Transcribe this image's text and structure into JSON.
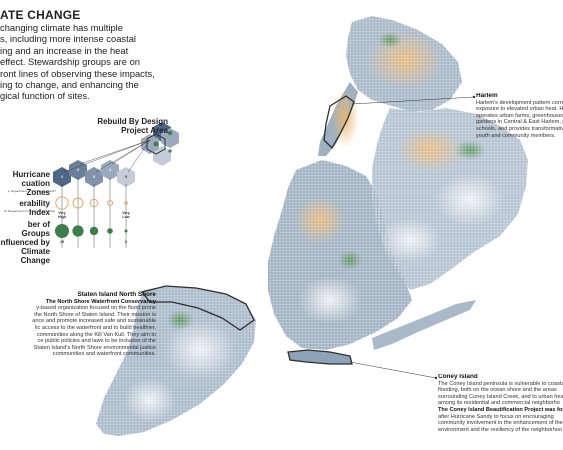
{
  "title": "ATE CHANGE",
  "intro": [
    "changing climate has multiple",
    "s, including more intense coastal",
    "ing and an increase in the heat",
    "effect. Stewardship groups are on",
    "ront lines of observing these impacts,",
    "ing to change, and enhancing the",
    "gical function of sites."
  ],
  "legend": {
    "rebuild_title_1": "Rebuild By Design",
    "rebuild_title_2": "Project Area",
    "hurricane_title_1": "Hurricane",
    "hurricane_title_2": "cuation Zones",
    "hurricane_source": "s, Department of City Planning 2017",
    "hurricane_zones": [
      "1",
      "2",
      "3",
      "4",
      "5"
    ],
    "vulnerability_title": "erability Index",
    "vulnerability_source": "th, Department of University University",
    "very_high_1": "Very",
    "very_high_2": "High",
    "very_low_1": "Very",
    "very_low_2": "Low",
    "groups_title_1": "ber of Groups",
    "groups_title_2": "nfluenced by",
    "groups_title_3": "Climate Change",
    "groups_max": "19",
    "groups_min": "0"
  },
  "annotations": {
    "harlem": {
      "heading": "Harlem",
      "lines": [
        "Harlem's development pattern corres",
        "exposure to elevated urban heat. Ha",
        "operates urban farms, greenhouses, a",
        "gardens in Central & East Harlem, pa",
        "schools, and provides transformative",
        "youth and community members."
      ]
    },
    "staten": {
      "heading": "Staten Island North Shore",
      "subheading": "The North Shore Waterfront Conservancy",
      "lines": [
        "y-based organization focused on the flood prone",
        "the North Shore of Staten Island. Their mission is",
        "ance and promote increased safe and sustainable",
        "lic access to the waterfront and to build healthier,",
        "communities along the Kill Van Kull. They aim to",
        "ce public policies and laws to be inclusive of the",
        "Staten Island's North Shore environmental justice",
        "communities and waterfront communities."
      ]
    },
    "coney": {
      "heading": "Coney Island",
      "lines": [
        "The Coney Island peninsula is vulnerable to coasta",
        "flooding, both on the ocean shore and the areas",
        "surrounding Coney Island Creek, and to urban heat",
        "among its residential and commercial neighborho"
      ],
      "bold_line": "The Coney Island Beautification Project was found",
      "tail_lines": [
        "after Hurricane Sandy to focus on encouraging",
        "community involvement in the enhancement of the",
        "environment and the resiliency of the neighborhoo"
      ]
    }
  },
  "colors": {
    "hex_zone": "#4e6787",
    "hex_zone_light": "#9aa9bc",
    "vuln_orange": "#e4a35d",
    "group_green": "#3f7e4b",
    "map_blue": "#8ea3b8",
    "map_light": "#dde4ea",
    "map_green": "#4a8a4a",
    "outline": "#2e2e2e"
  }
}
